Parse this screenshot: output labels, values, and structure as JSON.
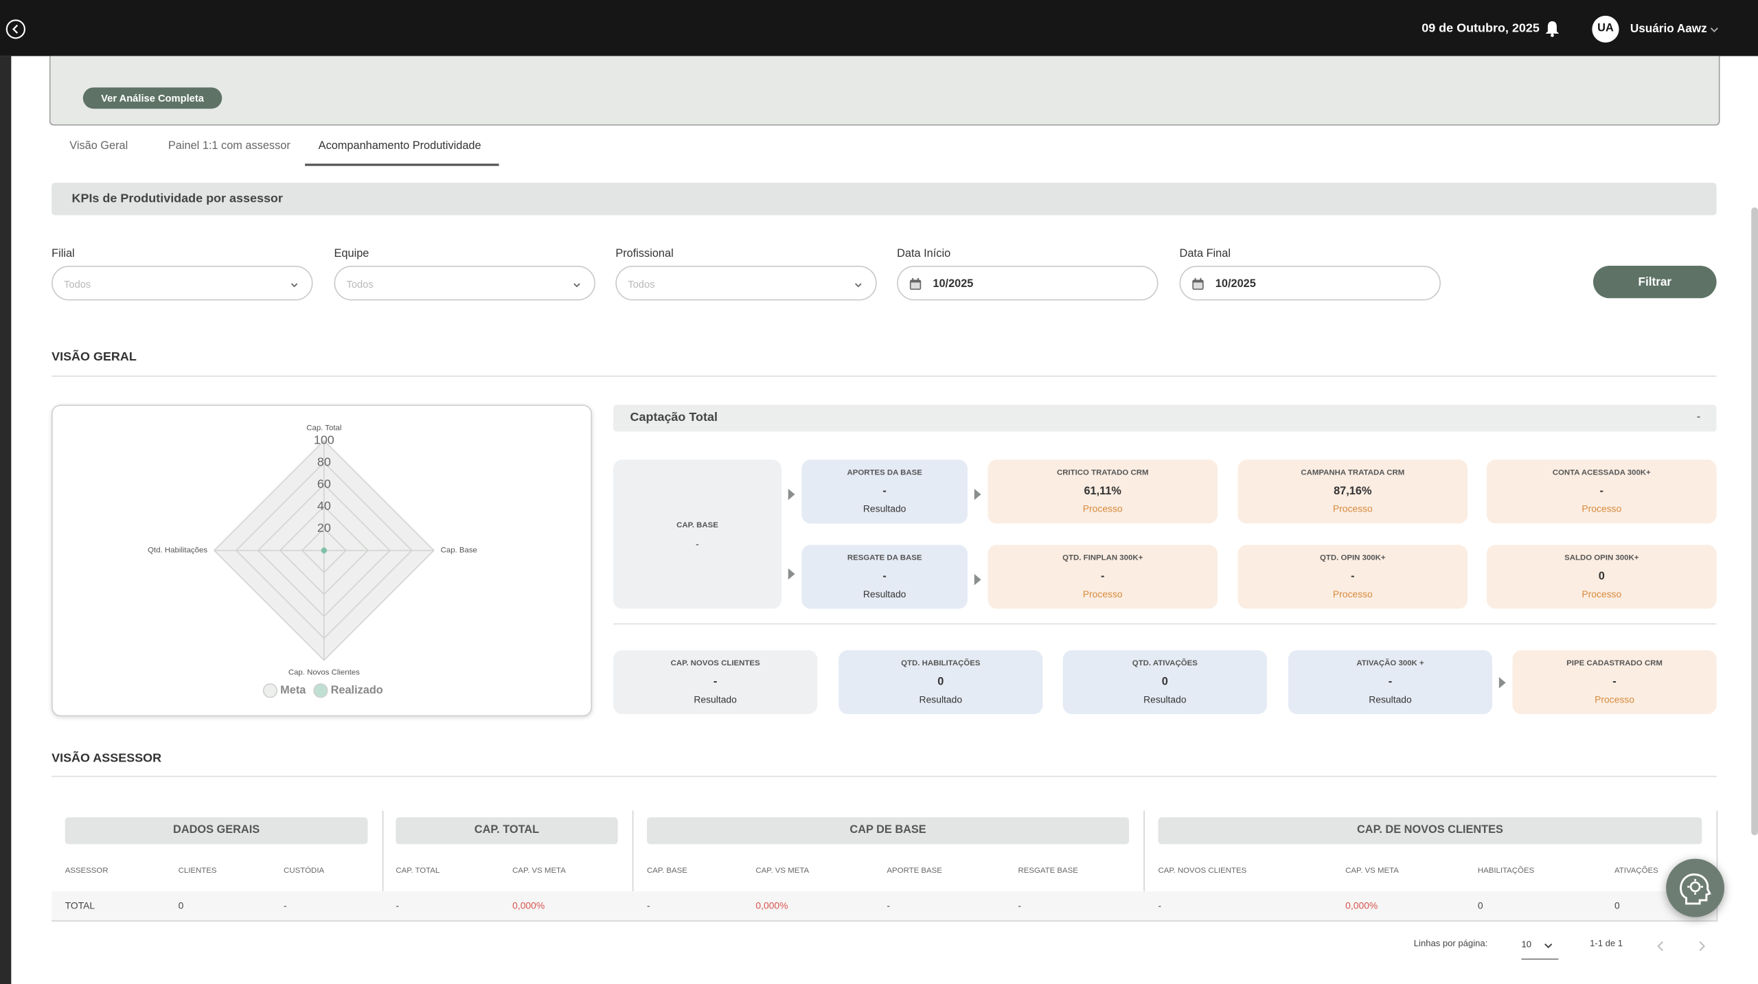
{
  "header": {
    "date": "09 de Outubro, 2025",
    "user_initials": "UA",
    "user_name": "Usuário Aawz"
  },
  "banner": {
    "button": "Ver Análise Completa"
  },
  "tabs": [
    "Visão Geral",
    "Painel 1:1 com assessor",
    "Acompanhamento Produtividade"
  ],
  "section_title": "KPIs de Produtividade por assessor",
  "filters": [
    {
      "label": "Filial",
      "placeholder": "Todos"
    },
    {
      "label": "Equipe",
      "placeholder": "Todos"
    },
    {
      "label": "Profissional",
      "placeholder": "Todos"
    },
    {
      "label": "Data Início",
      "value": "10/2025"
    },
    {
      "label": "Data Final",
      "value": "10/2025"
    }
  ],
  "filter_button": "Filtrar",
  "overview": {
    "title": "VISÃO GERAL",
    "radar": {
      "axes": [
        "Cap. Total",
        "Cap. Base",
        "Cap. Novos Clientes",
        "Qtd. Habilitações"
      ],
      "rlim": [
        0,
        100
      ],
      "rticks": [
        20,
        40,
        60,
        80,
        100
      ],
      "series": [
        {
          "name": "Meta",
          "color": "#dcdfdc",
          "values": [
            0,
            0,
            0,
            0
          ]
        },
        {
          "name": "Realizado",
          "color": "#7fbfa8",
          "values": [
            0,
            0,
            0,
            0
          ]
        }
      ]
    },
    "captacao": {
      "title": "Captação Total",
      "value": "-"
    },
    "cap_base": {
      "title": "CAP. BASE",
      "value": "-"
    },
    "base_cards": [
      {
        "title": "APORTES DA BASE",
        "value": "-",
        "status": "Resultado"
      },
      {
        "title": "RESGATE DA BASE",
        "value": "-",
        "status": "Resultado"
      }
    ],
    "process_cards": [
      {
        "title": "CRITICO TRATADO CRM",
        "value": "61,11%",
        "status": "Processo"
      },
      {
        "title": "CAMPANHA TRATADA CRM",
        "value": "87,16%",
        "status": "Processo"
      },
      {
        "title": "CONTA ACESSADA 300K+",
        "value": "-",
        "status": "Processo"
      },
      {
        "title": "QTD. FINPLAN 300K+",
        "value": "-",
        "status": "Processo"
      },
      {
        "title": "QTD. OPIN 300K+",
        "value": "-",
        "status": "Processo"
      },
      {
        "title": "SALDO OPIN 300K+",
        "value": "0",
        "status": "Processo"
      }
    ],
    "bottom_cards": [
      {
        "title": "CAP. NOVOS CLIENTES",
        "value": "-",
        "status": "Resultado"
      },
      {
        "title": "QTD. HABILITAÇÕES",
        "value": "0",
        "status": "Resultado"
      },
      {
        "title": "QTD. ATIVAÇÕES",
        "value": "0",
        "status": "Resultado"
      },
      {
        "title": "ATIVAÇÃO 300K +",
        "value": "-",
        "status": "Resultado"
      },
      {
        "title": "PIPE CADASTRADO CRM",
        "value": "-",
        "status": "Processo"
      }
    ]
  },
  "assessor": {
    "title": "VISÃO ASSESSOR",
    "groups": [
      "DADOS GERAIS",
      "CAP. TOTAL",
      "CAP DE BASE",
      "CAP. DE NOVOS CLIENTES"
    ],
    "columns": [
      "ASSESSOR",
      "CLIENTES",
      "CUSTÓDIA",
      "CAP. TOTAL",
      "CAP. VS META",
      "CAP. BASE",
      "CAP. VS META",
      "APORTE BASE",
      "RESGATE BASE",
      "CAP. NOVOS CLIENTES",
      "CAP. VS META",
      "HABILITAÇÕES",
      "ATIVAÇÕES"
    ],
    "rows": [
      [
        "TOTAL",
        "0",
        "-",
        "-",
        "0,000%",
        "-",
        "0,000%",
        "-",
        "-",
        "-",
        "0,000%",
        "0",
        "0"
      ]
    ]
  },
  "pagination": {
    "rows_label": "Linhas por página:",
    "rows_per_page": "10",
    "range": "1-1 de 1"
  }
}
